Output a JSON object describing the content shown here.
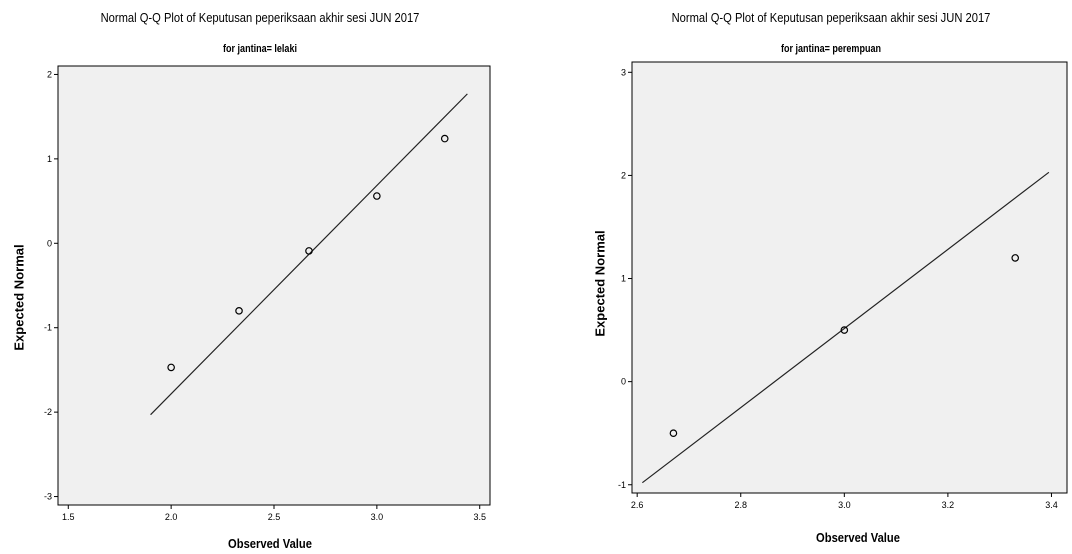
{
  "chart_data": [
    {
      "type": "scatter",
      "title": "Normal Q-Q Plot of Keputusan peperiksaan akhir sesi JUN 2017",
      "subtitle": "for jantina= lelaki",
      "xlabel": "Observed Value",
      "ylabel": "Expected Normal",
      "xlim": [
        1.45,
        3.55
      ],
      "ylim": [
        -3.1,
        2.1
      ],
      "xticks": [
        "1.5",
        "2.0",
        "2.5",
        "3.0",
        "3.5"
      ],
      "yticks": [
        "2",
        "1",
        "0",
        "-1",
        "-2",
        "-3"
      ],
      "grid": false,
      "points": [
        {
          "x": 2.0,
          "y": -1.47
        },
        {
          "x": 2.33,
          "y": -0.8
        },
        {
          "x": 2.67,
          "y": -0.09
        },
        {
          "x": 3.0,
          "y": 0.56
        },
        {
          "x": 3.33,
          "y": 1.24
        }
      ],
      "reference_line": {
        "x": [
          1.9,
          3.44
        ],
        "y": [
          -2.03,
          1.77
        ]
      }
    },
    {
      "type": "scatter",
      "title": "Normal Q-Q Plot of Keputusan peperiksaan akhir sesi JUN 2017",
      "subtitle": "for jantina= perempuan",
      "xlabel": "Observed Value",
      "ylabel": "Expected Normal",
      "xlim": [
        2.59,
        3.43
      ],
      "ylim": [
        -1.08,
        3.1
      ],
      "xticks": [
        "2.6",
        "2.8",
        "3.0",
        "3.2",
        "3.4"
      ],
      "yticks": [
        "3",
        "2",
        "1",
        "0",
        "-1"
      ],
      "grid": false,
      "points": [
        {
          "x": 2.67,
          "y": -0.5
        },
        {
          "x": 3.0,
          "y": 0.5
        },
        {
          "x": 3.33,
          "y": 1.2
        }
      ],
      "reference_line": {
        "x": [
          2.61,
          3.395
        ],
        "y": [
          -0.98,
          2.03
        ]
      }
    }
  ]
}
